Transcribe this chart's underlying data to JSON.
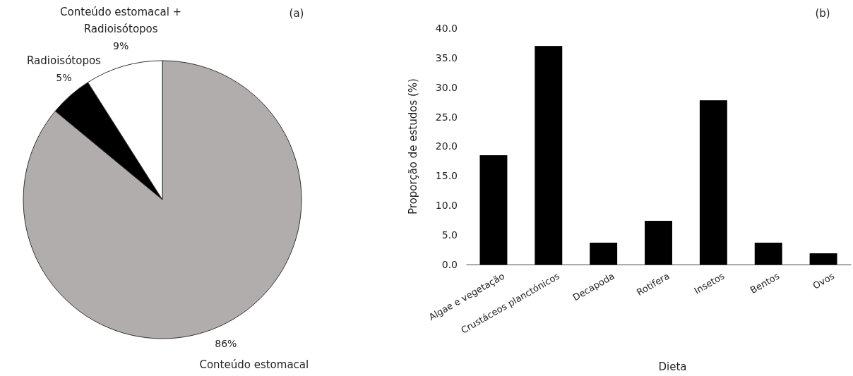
{
  "chart_data": [
    {
      "type": "pie",
      "title": "(a)",
      "categories": [
        "Conteúdo estomacal",
        "Radioisótopos",
        "Conteúdo estomacal + Radioisótopos"
      ],
      "values": [
        86,
        5,
        9
      ],
      "colors": [
        "#b0adac",
        "#000000",
        "#ffffff"
      ],
      "value_labels": [
        "86%",
        "5%",
        "9%"
      ]
    },
    {
      "type": "bar",
      "title": "(b)",
      "xlabel": "Dieta",
      "ylabel": "Proporção de estudos (%)",
      "categories": [
        "Algae e vegetação",
        "Crustáceos planctónicos",
        "Decapoda",
        "Rotifera",
        "Insetos",
        "Bentos",
        "Ovos"
      ],
      "values": [
        18.5,
        37.0,
        3.7,
        7.4,
        27.8,
        3.7,
        1.9
      ],
      "color": "#000000",
      "ylim": [
        0,
        40
      ],
      "yticks": [
        {
          "value": 0,
          "label": "0.0"
        },
        {
          "value": 5,
          "label": "5.0"
        },
        {
          "value": 10,
          "label": "10.0"
        },
        {
          "value": 15,
          "label": "15.0"
        },
        {
          "value": 20,
          "label": "20.0"
        },
        {
          "value": 25,
          "label": "25.0"
        },
        {
          "value": 30,
          "label": "30.0"
        },
        {
          "value": 35,
          "label": "35.0"
        },
        {
          "value": 40,
          "label": "40.0"
        }
      ],
      "grid": false
    }
  ]
}
